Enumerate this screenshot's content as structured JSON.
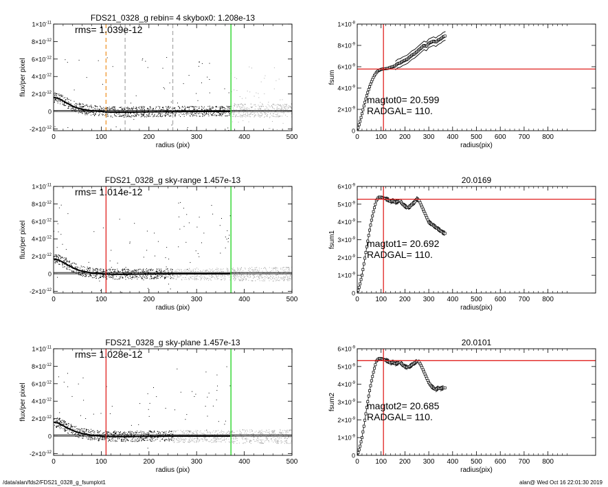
{
  "footer": {
    "path": "/data/alan/fds2/FDS21_0328_g_fsumplot1",
    "user_time": "alan@  Wed Oct 16 22:01:30 2019"
  },
  "colors": {
    "axes": "#000000",
    "bin_points": "#000000",
    "raw_points_inner": "#000000",
    "raw_points_outer": "#aaaaaa",
    "profile": "#000000",
    "radgal_line": "#e0201e",
    "aperture_line": "#19d219",
    "dashed_orange": "#f0962d",
    "dashed_gray": "#aaaaaa",
    "curve_of_growth": "#000000",
    "fsum_hline": "#e0201e"
  },
  "chart_data": [
    {
      "id": "profile-1",
      "type": "scatter",
      "title": "FDS21_0328_g rebin= 4    skybox0:  1.208e-13",
      "annotation": "rms= 1.039e-12",
      "xlabel": "radius (pix)",
      "ylabel": "flux/per pixel",
      "xlim": [
        0,
        500
      ],
      "ylim": [
        -2.2e-12,
        1e-11
      ],
      "xticks": [
        "0",
        "100",
        "200",
        "300",
        "400",
        "500"
      ],
      "yticks": [
        {
          "value": -2e-12,
          "mant": "-2",
          "exp": "-12"
        },
        {
          "value": 0,
          "mant": "0",
          "exp": ""
        },
        {
          "value": 2e-12,
          "mant": "2",
          "exp": "-12"
        },
        {
          "value": 4e-12,
          "mant": "4",
          "exp": "-12"
        },
        {
          "value": 6e-12,
          "mant": "6",
          "exp": "-12"
        },
        {
          "value": 8e-12,
          "mant": "8",
          "exp": "-12"
        },
        {
          "value": 1e-11,
          "mant": "1",
          "exp": "-11"
        }
      ],
      "profile": {
        "x": [
          0,
          10,
          20,
          30,
          40,
          50,
          60,
          70,
          80,
          90,
          100,
          110,
          120,
          140,
          160,
          180,
          200,
          250,
          300,
          370
        ],
        "y": [
          1.6e-12,
          1.5e-12,
          1.2e-12,
          9e-13,
          6e-13,
          4e-13,
          2.5e-13,
          1.5e-13,
          8e-14,
          4e-14,
          1e-14,
          -5e-14,
          -8e-14,
          -9e-14,
          -8e-14,
          -6e-14,
          -4e-14,
          -2e-14,
          0,
          0
        ]
      },
      "hlines": [
        0,
        1.208e-13
      ],
      "vlines": [
        {
          "x": 110,
          "style": "dashed",
          "color": "orange"
        },
        {
          "x": 150,
          "style": "dashed",
          "color": "gray"
        },
        {
          "x": 250,
          "style": "dashed",
          "color": "gray"
        },
        {
          "x": 372,
          "style": "solid",
          "color": "green"
        }
      ],
      "points_style": "dense-outer"
    },
    {
      "id": "cog-1",
      "type": "line",
      "title": "",
      "annotation_lines": [
        "magtot0=  20.599",
        "RADGAL=    110."
      ],
      "xlabel": "radius(pix)",
      "ylabel": "fsum",
      "xlim": [
        0,
        1000
      ],
      "ylim": [
        0,
        1e-08
      ],
      "xticks": [
        "0",
        "100",
        "200",
        "300",
        "400",
        "500",
        "600",
        "700",
        "800"
      ],
      "yticks": [
        {
          "value": 0,
          "mant": "0",
          "exp": ""
        },
        {
          "value": 2e-09,
          "mant": "2",
          "exp": "-9"
        },
        {
          "value": 4e-09,
          "mant": "4",
          "exp": "-9"
        },
        {
          "value": 6e-09,
          "mant": "6",
          "exp": "-9"
        },
        {
          "value": 8e-09,
          "mant": "8",
          "exp": "-9"
        },
        {
          "value": 1e-08,
          "mant": "1",
          "exp": "-8"
        }
      ],
      "curve": {
        "x": [
          0,
          10,
          20,
          30,
          40,
          50,
          60,
          70,
          80,
          90,
          100,
          110,
          120,
          130,
          140,
          150,
          160,
          170,
          180,
          190,
          200,
          210,
          220,
          230,
          240,
          250,
          260,
          270,
          280,
          290,
          300,
          310,
          320,
          330,
          340,
          350,
          360,
          370
        ],
        "y": [
          0,
          7e-10,
          1.6e-09,
          2.5e-09,
          3.3e-09,
          4e-09,
          4.6e-09,
          5.1e-09,
          5.45e-09,
          5.65e-09,
          5.75e-09,
          5.8e-09,
          5.82e-09,
          5.85e-09,
          5.95e-09,
          6e-09,
          6.1e-09,
          6.3e-09,
          6.35e-09,
          6.5e-09,
          6.6e-09,
          6.7e-09,
          6.9e-09,
          7.1e-09,
          7.2e-09,
          7.4e-09,
          7.6e-09,
          7.8e-09,
          8e-09,
          7.9e-09,
          8.2e-09,
          8.3e-09,
          8.4e-09,
          8.3e-09,
          8.5e-09,
          8.6e-09,
          8.8e-09,
          8.9e-09
        ]
      },
      "envelope_offset": 4e-10,
      "envelope_start": 160,
      "vline": 110,
      "hline": 5.78e-09
    },
    {
      "id": "profile-2",
      "type": "scatter",
      "title": "FDS21_0328_g sky-range  1.457e-13",
      "annotation": "rms= 1.014e-12",
      "xlabel": "radius (pix)",
      "ylabel": "flux/per pixel",
      "xlim": [
        0,
        500
      ],
      "ylim": [
        -2.2e-12,
        1e-11
      ],
      "xticks": [
        "0",
        "100",
        "200",
        "300",
        "400",
        "500"
      ],
      "yticks": [
        {
          "value": -2e-12,
          "mant": "-2",
          "exp": "-12"
        },
        {
          "value": 0,
          "mant": "0",
          "exp": ""
        },
        {
          "value": 2e-12,
          "mant": "2",
          "exp": "-12"
        },
        {
          "value": 4e-12,
          "mant": "4",
          "exp": "-12"
        },
        {
          "value": 6e-12,
          "mant": "6",
          "exp": "-12"
        },
        {
          "value": 8e-12,
          "mant": "8",
          "exp": "-12"
        },
        {
          "value": 1e-11,
          "mant": "1",
          "exp": "-11"
        }
      ],
      "profile": {
        "x": [
          0,
          10,
          20,
          30,
          40,
          50,
          60,
          70,
          80,
          90,
          100,
          110,
          120,
          140,
          160,
          180,
          200,
          250,
          300,
          370
        ],
        "y": [
          1.7e-12,
          1.6e-12,
          1.3e-12,
          1e-12,
          7e-13,
          4.5e-13,
          3e-13,
          2e-13,
          1e-13,
          5e-14,
          0,
          -3e-14,
          -5e-14,
          -6e-14,
          -5e-14,
          -3e-14,
          -2e-14,
          0,
          0,
          0
        ]
      },
      "hlines": [
        0,
        1.457e-13
      ],
      "vlines": [
        {
          "x": 110,
          "style": "solid",
          "color": "red"
        },
        {
          "x": 372,
          "style": "solid",
          "color": "green"
        }
      ],
      "points_style": "gray-band"
    },
    {
      "id": "cog-2",
      "type": "line",
      "title": "20.0169",
      "annotation_lines": [
        "magtot1=  20.692",
        "RADGAL=    110."
      ],
      "xlabel": "radius(pix)",
      "ylabel": "fsum1",
      "xlim": [
        0,
        1000
      ],
      "ylim": [
        0,
        6e-09
      ],
      "xticks": [
        "0",
        "100",
        "200",
        "300",
        "400",
        "500",
        "600",
        "700",
        "800"
      ],
      "yticks": [
        {
          "value": 0,
          "mant": "0",
          "exp": ""
        },
        {
          "value": 1e-09,
          "mant": "1",
          "exp": "-9"
        },
        {
          "value": 2e-09,
          "mant": "2",
          "exp": "-9"
        },
        {
          "value": 3e-09,
          "mant": "3",
          "exp": "-9"
        },
        {
          "value": 4e-09,
          "mant": "4",
          "exp": "-9"
        },
        {
          "value": 5e-09,
          "mant": "5",
          "exp": "-9"
        },
        {
          "value": 6e-09,
          "mant": "6",
          "exp": "-9"
        }
      ],
      "curve": {
        "x": [
          0,
          10,
          20,
          30,
          40,
          50,
          60,
          70,
          80,
          90,
          100,
          110,
          120,
          130,
          140,
          150,
          160,
          170,
          180,
          190,
          200,
          210,
          220,
          230,
          240,
          250,
          260,
          270,
          280,
          290,
          300,
          310,
          320,
          330,
          340,
          350,
          360,
          370
        ],
        "y": [
          0,
          4e-10,
          1e-09,
          1.8e-09,
          2.6e-09,
          3.4e-09,
          4.1e-09,
          4.7e-09,
          5.2e-09,
          5.4e-09,
          5.4e-09,
          5.35e-09,
          5.3e-09,
          5.25e-09,
          5.15e-09,
          5.2e-09,
          5.1e-09,
          5.15e-09,
          5.2e-09,
          5e-09,
          4.9e-09,
          4.8e-09,
          4.85e-09,
          5e-09,
          5.1e-09,
          5.3e-09,
          5.2e-09,
          4.9e-09,
          4.6e-09,
          4.3e-09,
          4e-09,
          3.9e-09,
          3.8e-09,
          3.7e-09,
          3.6e-09,
          3.5e-09,
          3.4e-09,
          3.35e-09
        ]
      },
      "envelope_offset": 1.2e-10,
      "envelope_start": 120,
      "vline": 110,
      "hline": 5.28e-09
    },
    {
      "id": "profile-3",
      "type": "scatter",
      "title": "FDS21_0328_g sky-plane  1.457e-13",
      "annotation": "rms= 1.028e-12",
      "xlabel": "radius (pix)",
      "ylabel": "flux/per pixel",
      "xlim": [
        0,
        500
      ],
      "ylim": [
        -2.2e-12,
        1e-11
      ],
      "xticks": [
        "0",
        "100",
        "200",
        "300",
        "400",
        "500"
      ],
      "yticks": [
        {
          "value": -2e-12,
          "mant": "-2",
          "exp": "-12"
        },
        {
          "value": 0,
          "mant": "0",
          "exp": ""
        },
        {
          "value": 2e-12,
          "mant": "2",
          "exp": "-12"
        },
        {
          "value": 4e-12,
          "mant": "4",
          "exp": "-12"
        },
        {
          "value": 6e-12,
          "mant": "6",
          "exp": "-12"
        },
        {
          "value": 8e-12,
          "mant": "8",
          "exp": "-12"
        },
        {
          "value": 1e-11,
          "mant": "1",
          "exp": "-11"
        }
      ],
      "profile": {
        "x": [
          0,
          10,
          20,
          30,
          40,
          50,
          60,
          70,
          80,
          90,
          100,
          110,
          120,
          140,
          160,
          180,
          200,
          250,
          300,
          370
        ],
        "y": [
          1.6e-12,
          1.5e-12,
          1.2e-12,
          9e-13,
          6.5e-13,
          4.5e-13,
          3e-13,
          2e-13,
          1e-13,
          5e-14,
          0,
          -3e-14,
          -5e-14,
          -6e-14,
          -5e-14,
          -3e-14,
          -2e-14,
          0,
          0,
          0
        ]
      },
      "hlines": [
        0,
        1.457e-13
      ],
      "vlines": [
        {
          "x": 110,
          "style": "solid",
          "color": "red"
        },
        {
          "x": 372,
          "style": "solid",
          "color": "green"
        }
      ],
      "points_style": "gray-band"
    },
    {
      "id": "cog-3",
      "type": "line",
      "title": "20.0101",
      "annotation_lines": [
        "magtot2=  20.685",
        "RADGAL=    110."
      ],
      "xlabel": "radius(pix)",
      "ylabel": "fsum2",
      "xlim": [
        0,
        1000
      ],
      "ylim": [
        0,
        6e-09
      ],
      "xticks": [
        "0",
        "100",
        "200",
        "300",
        "400",
        "500",
        "600",
        "700",
        "800"
      ],
      "yticks": [
        {
          "value": 0,
          "mant": "0",
          "exp": ""
        },
        {
          "value": 1e-09,
          "mant": "1",
          "exp": "-9"
        },
        {
          "value": 2e-09,
          "mant": "2",
          "exp": "-9"
        },
        {
          "value": 3e-09,
          "mant": "3",
          "exp": "-9"
        },
        {
          "value": 4e-09,
          "mant": "4",
          "exp": "-9"
        },
        {
          "value": 5e-09,
          "mant": "5",
          "exp": "-9"
        },
        {
          "value": 6e-09,
          "mant": "6",
          "exp": "-9"
        }
      ],
      "curve": {
        "x": [
          0,
          10,
          20,
          30,
          40,
          50,
          60,
          70,
          80,
          90,
          100,
          110,
          120,
          130,
          140,
          150,
          160,
          170,
          180,
          190,
          200,
          210,
          220,
          230,
          240,
          250,
          260,
          270,
          280,
          290,
          300,
          310,
          320,
          330,
          340,
          350,
          360,
          370
        ],
        "y": [
          0,
          4e-10,
          1e-09,
          1.8e-09,
          2.7e-09,
          3.5e-09,
          4.2e-09,
          4.8e-09,
          5.3e-09,
          5.45e-09,
          5.45e-09,
          5.4e-09,
          5.35e-09,
          5.3e-09,
          5.2e-09,
          5.25e-09,
          5.15e-09,
          5.2e-09,
          5.25e-09,
          5.1e-09,
          5e-09,
          4.95e-09,
          5e-09,
          5.1e-09,
          5.2e-09,
          5.3e-09,
          5.25e-09,
          5e-09,
          4.7e-09,
          4.4e-09,
          4.1e-09,
          3.9e-09,
          3.8e-09,
          3.7e-09,
          3.8e-09,
          3.75e-09,
          3.8e-09,
          3.8e-09
        ]
      },
      "envelope_offset": 1.2e-10,
      "envelope_start": 120,
      "vline": 110,
      "hline": 5.33e-09
    }
  ]
}
